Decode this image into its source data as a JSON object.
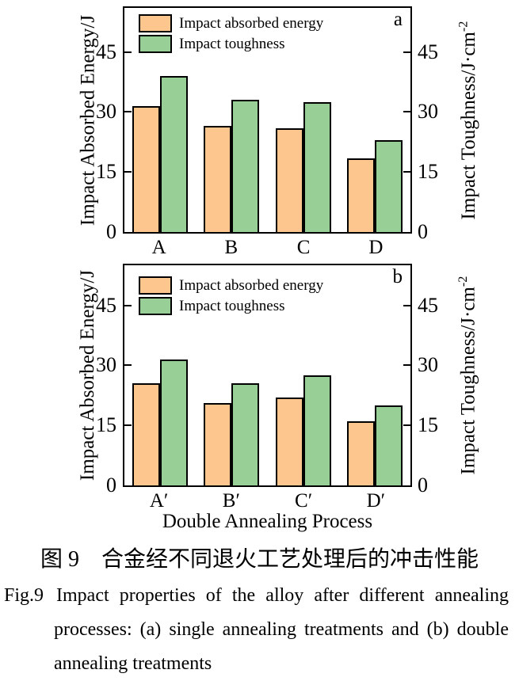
{
  "colors": {
    "absorbed_fill": "#FCC68E",
    "toughness_fill": "#98CF96",
    "bar_border": "#000000"
  },
  "chart_data": [
    {
      "type": "bar",
      "panel_label": "a",
      "categories": [
        "A",
        "B",
        "C",
        "D"
      ],
      "series": [
        {
          "name": "Impact absorbed energy",
          "values": [
            31.5,
            26.5,
            26,
            18.5
          ]
        },
        {
          "name": "Impact toughness",
          "values": [
            39,
            33,
            32.5,
            23
          ]
        }
      ],
      "ylabel_left": "Impact Absorbed Energy/J",
      "ylabel_right_base": "Impact Toughness/J·cm",
      "ylabel_right_sup": "-2",
      "xlabel": "",
      "y_ticks": [
        0,
        15,
        30,
        45
      ],
      "ylim": [
        0,
        56
      ],
      "legend_position": "top-left",
      "grid": false
    },
    {
      "type": "bar",
      "panel_label": "b",
      "categories": [
        "A′",
        "B′",
        "C′",
        "D′"
      ],
      "series": [
        {
          "name": "Impact absorbed energy",
          "values": [
            25.5,
            20.5,
            22,
            16
          ]
        },
        {
          "name": "Impact toughness",
          "values": [
            31.5,
            25.5,
            27.5,
            20
          ]
        }
      ],
      "ylabel_left": "Impact Absorbed Energy/J",
      "ylabel_right_base": "Impact Toughness/J·cm",
      "ylabel_right_sup": "-2",
      "xlabel": "Double Annealing Process",
      "y_ticks": [
        0,
        15,
        30,
        45
      ],
      "ylim": [
        0,
        55
      ],
      "legend_position": "top-left",
      "grid": false
    }
  ],
  "captions": {
    "zh": "图 9　合金经不同退火工艺处理后的冲击性能",
    "en_label": "Fig.9",
    "en_lines": [
      "Impact properties of the alloy after different annealing",
      "processes: (a) single annealing treatments and (b) double",
      "annealing treatments"
    ]
  }
}
